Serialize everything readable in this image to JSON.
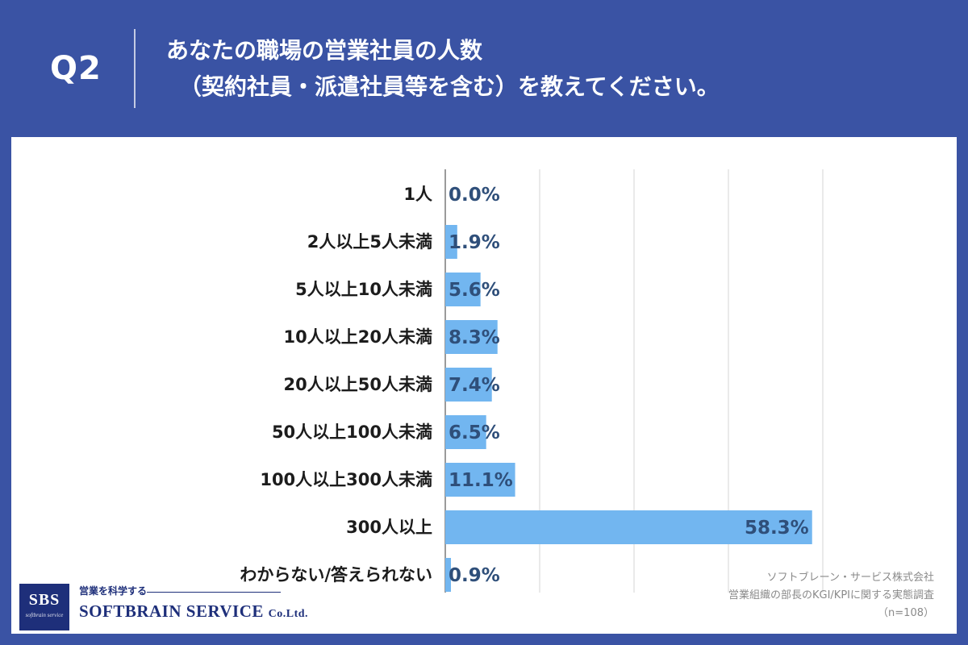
{
  "header": {
    "question_number": "Q2",
    "title_line1": "あなたの職場の営業社員の人数",
    "title_line2": "（契約社員・派遣社員等を含む）を教えてください。"
  },
  "chart_data": {
    "type": "bar",
    "orientation": "horizontal",
    "categories": [
      "1人",
      "2人以上5人未満",
      "5人以上10人未満",
      "10人以上20人未満",
      "20人以上50人未満",
      "50人以上100人未満",
      "100人以上300人未満",
      "300人以上",
      "わからない/答えられない"
    ],
    "values": [
      0.0,
      1.9,
      5.6,
      8.3,
      7.4,
      6.5,
      11.1,
      58.3,
      0.9
    ],
    "value_labels": [
      "0.0%",
      "1.9%",
      "5.6%",
      "8.3%",
      "7.4%",
      "6.5%",
      "11.1%",
      "58.3%",
      "0.9%"
    ],
    "xlim": [
      0,
      60
    ],
    "gridlines": [
      0,
      15,
      30,
      45,
      60
    ],
    "grid": true,
    "bar_color": "#72b6f0",
    "value_label_color": "#2f4f7a"
  },
  "source": {
    "line1": "ソフトブレーン・サービス株式会社",
    "line2": "営業組織の部長のKGI/KPIに関する実態調査",
    "line3": "（n=108）"
  },
  "logo": {
    "abbr": "SBS",
    "small_text": "softbrain service",
    "tagline": "営業を科学する",
    "company_name": "SOFTBRAIN SERVICE",
    "company_suffix": "Co.Ltd."
  },
  "colors": {
    "header_background": "#3a53a4",
    "panel_background": "#ffffff",
    "logo_navy": "#1e2f7a"
  }
}
